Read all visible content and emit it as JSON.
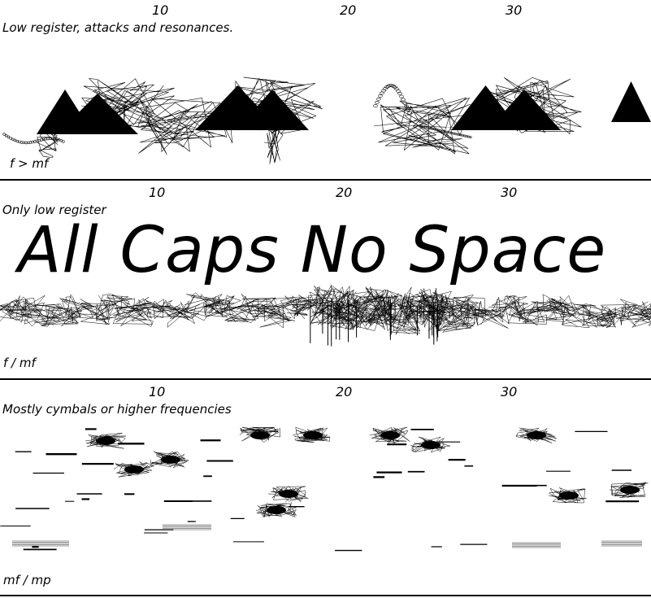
{
  "systems": [
    {
      "numbers": [
        "10",
        "20",
        "30"
      ],
      "caption": "Low register, attacks and resonances.",
      "dynamic": "f > mf"
    },
    {
      "numbers": [
        "10",
        "20",
        "30"
      ],
      "caption": "Only low register",
      "dynamic": "f / mf"
    },
    {
      "numbers": [
        "10",
        "20",
        "30"
      ],
      "caption": "Mostly cymbals or higher frequencies",
      "dynamic": "mf / mp"
    }
  ],
  "title_overlay": "All Caps No Space",
  "colors": {
    "ink": "#000000",
    "paper": "#ffffff"
  }
}
